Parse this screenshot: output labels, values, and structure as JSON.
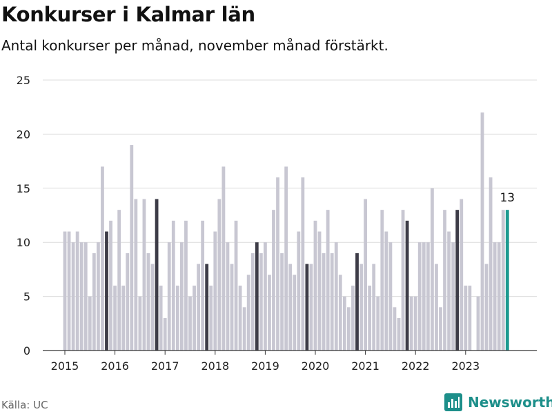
{
  "title": "Konkurser i Kalmar län",
  "subtitle": "Antal konkurser per månad, november månad förstärkt.",
  "source": "Källa: UC",
  "brand": {
    "name": "Newsworthy",
    "icon": "bar-chart-icon",
    "color": "#1d8f8a"
  },
  "chart_data": {
    "type": "bar",
    "title": "Konkurser i Kalmar län",
    "subtitle": "Antal konkurser per månad, november månad förstärkt.",
    "xlabel": "",
    "ylabel": "",
    "ylim": [
      0,
      25
    ],
    "yticks": [
      0,
      5,
      10,
      15,
      20,
      25
    ],
    "grid": true,
    "start": "2015-01",
    "xticks": [
      "2015",
      "2016",
      "2017",
      "2018",
      "2019",
      "2020",
      "2021",
      "2022",
      "2023"
    ],
    "values": [
      11,
      11,
      10,
      11,
      10,
      10,
      5,
      9,
      10,
      17,
      11,
      12,
      6,
      13,
      6,
      9,
      19,
      14,
      5,
      14,
      9,
      8,
      14,
      6,
      3,
      10,
      12,
      6,
      10,
      12,
      5,
      6,
      8,
      12,
      8,
      6,
      11,
      14,
      17,
      10,
      8,
      12,
      6,
      4,
      7,
      9,
      10,
      9,
      10,
      7,
      13,
      16,
      9,
      17,
      8,
      7,
      11,
      16,
      8,
      8,
      12,
      11,
      9,
      13,
      9,
      10,
      7,
      5,
      4,
      6,
      9,
      8,
      14,
      6,
      8,
      5,
      13,
      11,
      10,
      4,
      3,
      13,
      12,
      5,
      5,
      10,
      10,
      10,
      15,
      8,
      4,
      13,
      11,
      10,
      13,
      14,
      6,
      6,
      0,
      5,
      22,
      8,
      16,
      10,
      10,
      13,
      13
    ],
    "highlight_month": "november",
    "last_value_label": "13",
    "colors": {
      "bar": "#c8c7d2",
      "november": "#3d3c47",
      "latest": "#1d9a90",
      "grid": "#dcdcdc",
      "axis": "#333333"
    }
  }
}
